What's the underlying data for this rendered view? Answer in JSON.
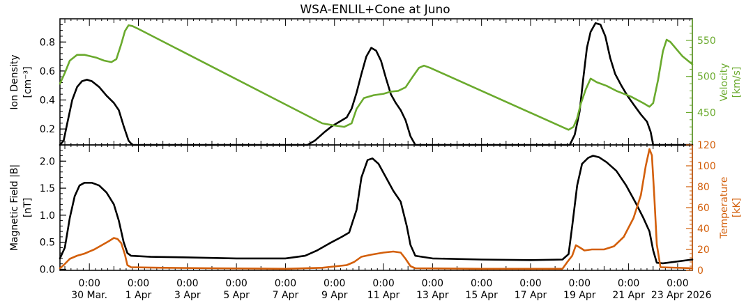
{
  "chart_data": [
    {
      "type": "line",
      "title": "WSA-ENLIL+Cone at Juno",
      "xlabel": "",
      "x_unit": "days since 30 Mar. 0:00",
      "xlim": [
        -1.2,
        24.6
      ],
      "x_tick_labels": [
        {
          "x": 0,
          "time": "0:00",
          "date": "30 Mar."
        },
        {
          "x": 2,
          "time": "0:00",
          "date": "1 Apr"
        },
        {
          "x": 4,
          "time": "0:00",
          "date": "3 Apr"
        },
        {
          "x": 6,
          "time": "0:00",
          "date": "5 Apr"
        },
        {
          "x": 8,
          "time": "0:00",
          "date": "7 Apr"
        },
        {
          "x": 10,
          "time": "0:00",
          "date": "9 Apr"
        },
        {
          "x": 12,
          "time": "0:00",
          "date": "11 Apr"
        },
        {
          "x": 14,
          "time": "0:00",
          "date": "13 Apr"
        },
        {
          "x": 16,
          "time": "0:00",
          "date": "15 Apr"
        },
        {
          "x": 18,
          "time": "0:00",
          "date": "17 Apr"
        },
        {
          "x": 20,
          "time": "0:00",
          "date": "19 Apr"
        },
        {
          "x": 22,
          "time": "0:00",
          "date": "21 Apr"
        },
        {
          "x": 24,
          "time": "0:00",
          "date": "23 Apr 2026"
        }
      ],
      "left_axis": {
        "label": "Ion Density",
        "unit": "[cm⁻³]",
        "ylim": [
          0.09,
          0.96
        ],
        "ticks": [
          0.2,
          0.4,
          0.6,
          0.8
        ],
        "color": "#000000"
      },
      "right_axis": {
        "label": "Velocity",
        "unit": "[km/s]",
        "ylim": [
          405,
          580
        ],
        "ticks": [
          450,
          500,
          550
        ],
        "color": "#6aaa2d"
      },
      "series": [
        {
          "name": "",
          "axis": "left",
          "color": "#000000",
          "points": [
            [
              -1.2,
              0.09
            ],
            [
              -1.05,
              0.12
            ],
            [
              -0.9,
              0.24
            ],
            [
              -0.7,
              0.4
            ],
            [
              -0.5,
              0.49
            ],
            [
              -0.3,
              0.53
            ],
            [
              -0.1,
              0.54
            ],
            [
              0.1,
              0.53
            ],
            [
              0.4,
              0.49
            ],
            [
              0.7,
              0.43
            ],
            [
              1.0,
              0.38
            ],
            [
              1.2,
              0.33
            ],
            [
              1.4,
              0.22
            ],
            [
              1.6,
              0.12
            ],
            [
              1.75,
              0.09
            ],
            [
              8.9,
              0.09
            ],
            [
              9.2,
              0.12
            ],
            [
              9.6,
              0.18
            ],
            [
              9.9,
              0.22
            ],
            [
              10.2,
              0.25
            ],
            [
              10.5,
              0.28
            ],
            [
              10.7,
              0.34
            ],
            [
              10.9,
              0.45
            ],
            [
              11.1,
              0.58
            ],
            [
              11.3,
              0.7
            ],
            [
              11.5,
              0.76
            ],
            [
              11.7,
              0.74
            ],
            [
              11.9,
              0.67
            ],
            [
              12.1,
              0.55
            ],
            [
              12.3,
              0.44
            ],
            [
              12.5,
              0.38
            ],
            [
              12.7,
              0.33
            ],
            [
              12.9,
              0.26
            ],
            [
              13.1,
              0.15
            ],
            [
              13.3,
              0.09
            ],
            [
              19.6,
              0.09
            ],
            [
              19.8,
              0.16
            ],
            [
              20.0,
              0.32
            ],
            [
              20.15,
              0.55
            ],
            [
              20.3,
              0.76
            ],
            [
              20.45,
              0.87
            ],
            [
              20.65,
              0.93
            ],
            [
              20.85,
              0.92
            ],
            [
              21.05,
              0.84
            ],
            [
              21.25,
              0.69
            ],
            [
              21.45,
              0.58
            ],
            [
              21.7,
              0.5
            ],
            [
              21.95,
              0.43
            ],
            [
              22.2,
              0.37
            ],
            [
              22.5,
              0.3
            ],
            [
              22.75,
              0.25
            ],
            [
              22.9,
              0.18
            ],
            [
              23.0,
              0.09
            ],
            [
              24.6,
              0.09
            ]
          ]
        },
        {
          "name": "",
          "axis": "right",
          "color": "#6aaa2d",
          "points": [
            [
              -1.2,
              490
            ],
            [
              -1.0,
              505
            ],
            [
              -0.8,
              522
            ],
            [
              -0.5,
              530
            ],
            [
              -0.2,
              530
            ],
            [
              0.3,
              526
            ],
            [
              0.6,
              522
            ],
            [
              0.9,
              520
            ],
            [
              1.1,
              524
            ],
            [
              1.3,
              545
            ],
            [
              1.45,
              563
            ],
            [
              1.6,
              571
            ],
            [
              1.75,
              570
            ],
            [
              2.0,
              566
            ],
            [
              9.5,
              435
            ],
            [
              10.0,
              432
            ],
            [
              10.4,
              430
            ],
            [
              10.7,
              435
            ],
            [
              10.9,
              455
            ],
            [
              11.2,
              470
            ],
            [
              11.6,
              474
            ],
            [
              12.0,
              476
            ],
            [
              12.3,
              479
            ],
            [
              12.6,
              480
            ],
            [
              12.9,
              485
            ],
            [
              13.2,
              500
            ],
            [
              13.45,
              512
            ],
            [
              13.65,
              515
            ],
            [
              13.9,
              512
            ],
            [
              19.55,
              426
            ],
            [
              19.75,
              430
            ],
            [
              19.9,
              442
            ],
            [
              20.05,
              462
            ],
            [
              20.25,
              482
            ],
            [
              20.45,
              497
            ],
            [
              20.7,
              492
            ],
            [
              21.1,
              487
            ],
            [
              21.5,
              480
            ],
            [
              22.1,
              472
            ],
            [
              22.6,
              463
            ],
            [
              22.85,
              458
            ],
            [
              23.0,
              463
            ],
            [
              23.2,
              495
            ],
            [
              23.4,
              535
            ],
            [
              23.55,
              551
            ],
            [
              23.7,
              548
            ],
            [
              24.2,
              528
            ],
            [
              24.6,
              517
            ]
          ]
        }
      ]
    },
    {
      "type": "line",
      "title": "",
      "xlabel": "",
      "x_unit": "days since 30 Mar. 0:00",
      "xlim": [
        -1.2,
        24.6
      ],
      "left_axis": {
        "label": "Magnetic Field |B|",
        "unit": "[nT]",
        "ylim": [
          -0.02,
          2.3
        ],
        "ticks": [
          0.0,
          0.5,
          1.0,
          1.5,
          2.0
        ],
        "color": "#000000"
      },
      "right_axis": {
        "label": "Temperature",
        "unit": "[kK]",
        "ylim": [
          0,
          120
        ],
        "ticks": [
          0,
          20,
          40,
          60,
          80,
          100,
          120
        ],
        "color": "#d35f0b"
      },
      "series": [
        {
          "name": "",
          "axis": "left",
          "color": "#000000",
          "points": [
            [
              -1.2,
              0.2
            ],
            [
              -1.0,
              0.4
            ],
            [
              -0.8,
              0.95
            ],
            [
              -0.6,
              1.35
            ],
            [
              -0.4,
              1.55
            ],
            [
              -0.2,
              1.6
            ],
            [
              0.1,
              1.6
            ],
            [
              0.4,
              1.55
            ],
            [
              0.7,
              1.42
            ],
            [
              1.0,
              1.2
            ],
            [
              1.2,
              0.9
            ],
            [
              1.4,
              0.5
            ],
            [
              1.55,
              0.3
            ],
            [
              1.7,
              0.25
            ],
            [
              2.5,
              0.23
            ],
            [
              4.0,
              0.22
            ],
            [
              6.0,
              0.2
            ],
            [
              8.0,
              0.2
            ],
            [
              8.8,
              0.25
            ],
            [
              9.3,
              0.35
            ],
            [
              9.8,
              0.48
            ],
            [
              10.3,
              0.6
            ],
            [
              10.6,
              0.68
            ],
            [
              10.9,
              1.1
            ],
            [
              11.1,
              1.7
            ],
            [
              11.35,
              2.02
            ],
            [
              11.55,
              2.05
            ],
            [
              11.8,
              1.95
            ],
            [
              12.1,
              1.7
            ],
            [
              12.4,
              1.45
            ],
            [
              12.7,
              1.25
            ],
            [
              12.95,
              0.8
            ],
            [
              13.1,
              0.45
            ],
            [
              13.3,
              0.25
            ],
            [
              14.0,
              0.2
            ],
            [
              16.0,
              0.18
            ],
            [
              18.0,
              0.17
            ],
            [
              19.3,
              0.18
            ],
            [
              19.55,
              0.28
            ],
            [
              19.7,
              0.8
            ],
            [
              19.9,
              1.55
            ],
            [
              20.1,
              1.95
            ],
            [
              20.35,
              2.06
            ],
            [
              20.55,
              2.1
            ],
            [
              20.8,
              2.07
            ],
            [
              21.1,
              1.98
            ],
            [
              21.5,
              1.82
            ],
            [
              21.9,
              1.55
            ],
            [
              22.3,
              1.22
            ],
            [
              22.6,
              0.95
            ],
            [
              22.85,
              0.7
            ],
            [
              23.0,
              0.35
            ],
            [
              23.15,
              0.12
            ],
            [
              23.4,
              0.11
            ],
            [
              24.6,
              0.18
            ]
          ]
        },
        {
          "name": "",
          "axis": "right",
          "color": "#d35f0b",
          "points": [
            [
              -1.2,
              2
            ],
            [
              -1.05,
              5
            ],
            [
              -0.8,
              11
            ],
            [
              -0.5,
              14
            ],
            [
              -0.2,
              16
            ],
            [
              0.2,
              20
            ],
            [
              0.5,
              24
            ],
            [
              0.8,
              28
            ],
            [
              1.0,
              31
            ],
            [
              1.15,
              30
            ],
            [
              1.3,
              26
            ],
            [
              1.45,
              15
            ],
            [
              1.55,
              5
            ],
            [
              1.7,
              3
            ],
            [
              3.0,
              2.5
            ],
            [
              5.0,
              2
            ],
            [
              8.0,
              1.5
            ],
            [
              9.5,
              2.5
            ],
            [
              10.5,
              5
            ],
            [
              10.8,
              8
            ],
            [
              11.1,
              13
            ],
            [
              11.5,
              15
            ],
            [
              12.0,
              17
            ],
            [
              12.4,
              18
            ],
            [
              12.7,
              17
            ],
            [
              12.9,
              11
            ],
            [
              13.1,
              4
            ],
            [
              13.3,
              2
            ],
            [
              16.0,
              1.5
            ],
            [
              19.3,
              1.5
            ],
            [
              19.5,
              8
            ],
            [
              19.7,
              14
            ],
            [
              19.85,
              24
            ],
            [
              20.0,
              22
            ],
            [
              20.2,
              19
            ],
            [
              20.5,
              20
            ],
            [
              21.0,
              20
            ],
            [
              21.4,
              23
            ],
            [
              21.8,
              32
            ],
            [
              22.2,
              50
            ],
            [
              22.5,
              72
            ],
            [
              22.7,
              100
            ],
            [
              22.85,
              116
            ],
            [
              22.95,
              110
            ],
            [
              23.05,
              70
            ],
            [
              23.15,
              25
            ],
            [
              23.3,
              3
            ],
            [
              24.6,
              2
            ]
          ]
        }
      ]
    }
  ]
}
